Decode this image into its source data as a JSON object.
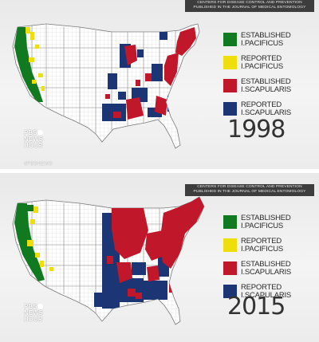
{
  "source_lines": [
    "CENTERS FOR DISEASE CONTROL AND PREVENTION",
    "PUBLISHED IN THE JOURNAL OF MEDICAL ENTOMOLOGY"
  ],
  "colors": {
    "established_pacificus": "#117a21",
    "reported_pacificus": "#eedf0c",
    "established_scapularis": "#c0182a",
    "reported_scapularis": "#1b3575",
    "land": "#ffffff",
    "boundary": "#999999"
  },
  "legend": [
    {
      "key": "established_pacificus",
      "line1": "ESTABLISHED",
      "line2": "I.PACIFICUS"
    },
    {
      "key": "reported_pacificus",
      "line1": "REPORTED",
      "line2": "I.PACIFICUS"
    },
    {
      "key": "established_scapularis",
      "line1": "ESTABLISHED",
      "line2": "I.SCAPULARIS"
    },
    {
      "key": "reported_scapularis",
      "line1": "REPORTED",
      "line2": "I.SCAPULARIS"
    }
  ],
  "panels": [
    {
      "year": "1998",
      "logo": [
        "PBS",
        "NEWS",
        "HOUR"
      ],
      "hashtag": "#PBSNEWS"
    },
    {
      "year": "2015",
      "logo": [
        "PBS",
        "NEWS",
        "HOUR"
      ],
      "hashtag": ""
    }
  ]
}
